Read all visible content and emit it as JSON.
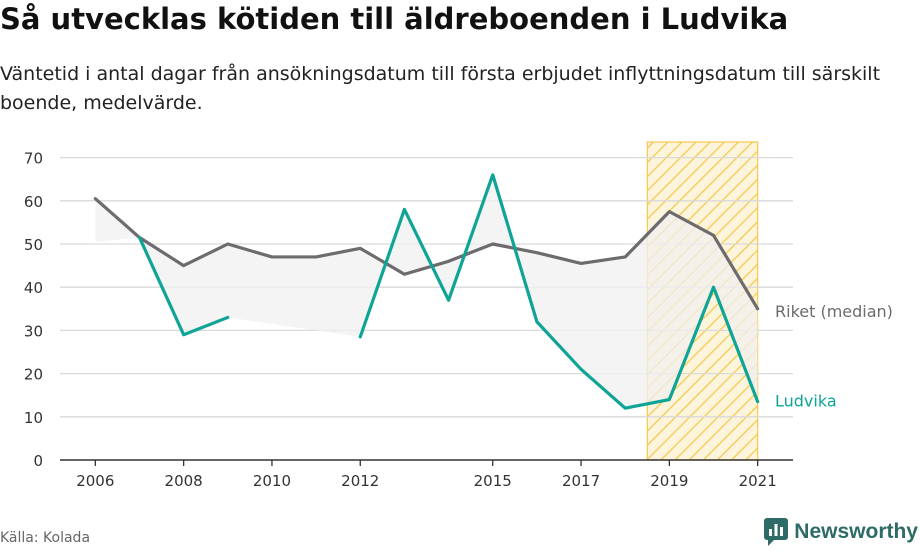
{
  "header": {
    "title": "Så utvecklas kötiden till äldreboenden i Ludvika",
    "subtitle": "Väntetid i antal dagar från ansökningsdatum till första erbjudet inflyttningsdatum till särskilt boende, medelvärde."
  },
  "footer": {
    "source": "Källa: Kolada",
    "brand": "Newsworthy"
  },
  "colors": {
    "riket": "#6e6b6e",
    "ludvika": "#0ea496",
    "highlight": "#f5c84c",
    "fill": "#f0f0f0",
    "grid": "#d9d9d9"
  },
  "chart_data": {
    "type": "line",
    "title": "Så utvecklas kötiden till äldreboenden i Ludvika",
    "xlabel": "",
    "ylabel": "",
    "ylim": [
      0,
      75
    ],
    "xlim": [
      2005.2,
      2021.8
    ],
    "yticks": [
      0,
      10,
      20,
      30,
      40,
      50,
      60,
      70
    ],
    "xticks": [
      2006,
      2008,
      2010,
      2012,
      2015,
      2017,
      2019,
      2021
    ],
    "grid": true,
    "highlight_range": [
      2018.5,
      2021
    ],
    "series": [
      {
        "name": "Riket (median)",
        "label": "Riket (median)",
        "color": "#6e6b6e",
        "x": [
          2006,
          2007,
          2008,
          2009,
          2010,
          2011,
          2012,
          2013,
          2014,
          2015,
          2016,
          2017,
          2018,
          2019,
          2020,
          2021
        ],
        "values": [
          60.5,
          51.5,
          45,
          50,
          47,
          47,
          49,
          43,
          46,
          50,
          48,
          45.5,
          47,
          57.5,
          52,
          35
        ]
      },
      {
        "name": "Ludvika",
        "label": "Ludvika",
        "color": "#0ea496",
        "x": [
          2006,
          2007,
          2008,
          2009,
          2010,
          2011,
          2012,
          2013,
          2014,
          2015,
          2016,
          2017,
          2018,
          2019,
          2020,
          2021
        ],
        "values": [
          null,
          51.5,
          29,
          33,
          null,
          null,
          28.5,
          58,
          37,
          66,
          32,
          21,
          12,
          14,
          40,
          13.5
        ]
      }
    ]
  }
}
